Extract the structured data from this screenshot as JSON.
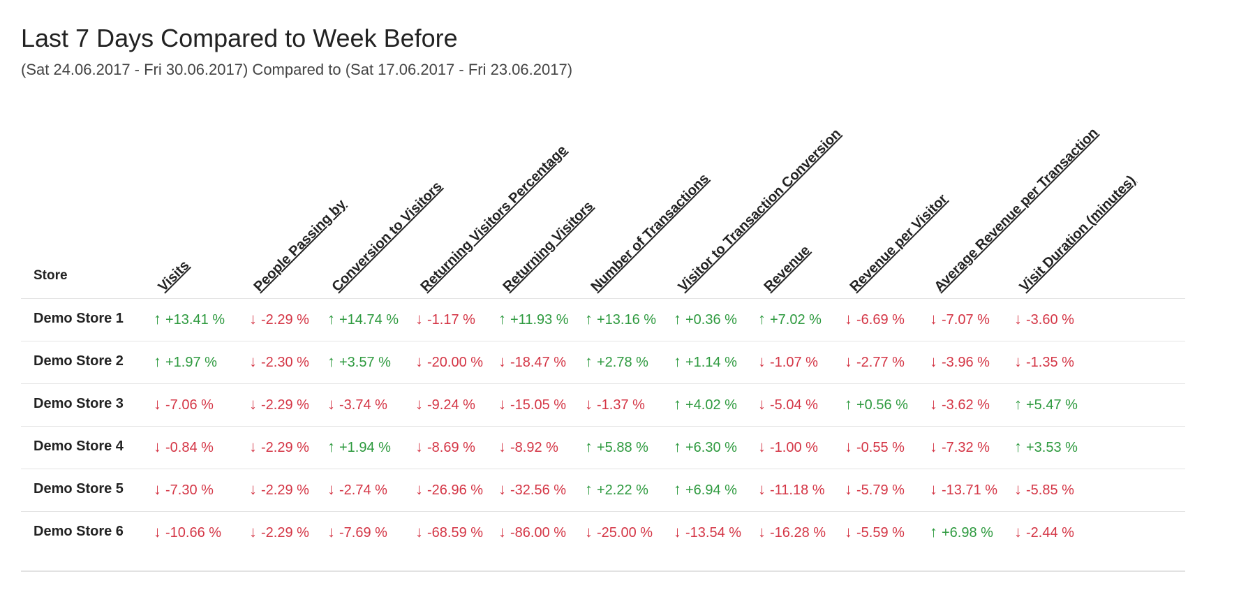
{
  "title": "Last 7 Days Compared to Week Before",
  "subtitle": "(Sat 24.06.2017 - Fri 30.06.2017) Compared to (Sat 17.06.2017 - Fri 23.06.2017)",
  "table": {
    "store_header": "Store",
    "columns": [
      "Visits",
      "People Passing by",
      "Conversion to Visitors",
      "Returning Visitors Percentage",
      "Returning Visitors",
      "Number of Transactions",
      "Visitor to Transaction Conversion",
      "Revenue",
      "Revenue per Visitor",
      "Average Revenue per Transaction",
      "Visit Duration (minutes)"
    ],
    "colors": {
      "up": "#2e9a3f",
      "down": "#d43545"
    },
    "arrows": {
      "up": "↑",
      "down": "↓"
    },
    "rows": [
      {
        "store": "Demo Store 1",
        "values": [
          {
            "dir": "up",
            "text": "+13.41 %"
          },
          {
            "dir": "down",
            "text": "-2.29 %"
          },
          {
            "dir": "up",
            "text": "+14.74 %"
          },
          {
            "dir": "down",
            "text": "-1.17 %"
          },
          {
            "dir": "up",
            "text": "+11.93 %"
          },
          {
            "dir": "up",
            "text": "+13.16 %"
          },
          {
            "dir": "up",
            "text": "+0.36 %"
          },
          {
            "dir": "up",
            "text": "+7.02 %"
          },
          {
            "dir": "down",
            "text": "-6.69 %"
          },
          {
            "dir": "down",
            "text": "-7.07 %"
          },
          {
            "dir": "down",
            "text": "-3.60 %"
          }
        ]
      },
      {
        "store": "Demo Store 2",
        "values": [
          {
            "dir": "up",
            "text": "+1.97 %"
          },
          {
            "dir": "down",
            "text": "-2.30 %"
          },
          {
            "dir": "up",
            "text": "+3.57 %"
          },
          {
            "dir": "down",
            "text": "-20.00 %"
          },
          {
            "dir": "down",
            "text": "-18.47 %"
          },
          {
            "dir": "up",
            "text": "+2.78 %"
          },
          {
            "dir": "up",
            "text": "+1.14 %"
          },
          {
            "dir": "down",
            "text": "-1.07 %"
          },
          {
            "dir": "down",
            "text": "-2.77 %"
          },
          {
            "dir": "down",
            "text": "-3.96 %"
          },
          {
            "dir": "down",
            "text": "-1.35 %"
          }
        ]
      },
      {
        "store": "Demo Store 3",
        "values": [
          {
            "dir": "down",
            "text": "-7.06 %"
          },
          {
            "dir": "down",
            "text": "-2.29 %"
          },
          {
            "dir": "down",
            "text": "-3.74 %"
          },
          {
            "dir": "down",
            "text": "-9.24 %"
          },
          {
            "dir": "down",
            "text": "-15.05 %"
          },
          {
            "dir": "down",
            "text": "-1.37 %"
          },
          {
            "dir": "up",
            "text": "+4.02 %"
          },
          {
            "dir": "down",
            "text": "-5.04 %"
          },
          {
            "dir": "up",
            "text": "+0.56 %"
          },
          {
            "dir": "down",
            "text": "-3.62 %"
          },
          {
            "dir": "up",
            "text": "+5.47 %"
          }
        ]
      },
      {
        "store": "Demo Store 4",
        "values": [
          {
            "dir": "down",
            "text": "-0.84 %"
          },
          {
            "dir": "down",
            "text": "-2.29 %"
          },
          {
            "dir": "up",
            "text": "+1.94 %"
          },
          {
            "dir": "down",
            "text": "-8.69 %"
          },
          {
            "dir": "down",
            "text": "-8.92 %"
          },
          {
            "dir": "up",
            "text": "+5.88 %"
          },
          {
            "dir": "up",
            "text": "+6.30 %"
          },
          {
            "dir": "down",
            "text": "-1.00 %"
          },
          {
            "dir": "down",
            "text": "-0.55 %"
          },
          {
            "dir": "down",
            "text": "-7.32 %"
          },
          {
            "dir": "up",
            "text": "+3.53 %"
          }
        ]
      },
      {
        "store": "Demo Store 5",
        "values": [
          {
            "dir": "down",
            "text": "-7.30 %"
          },
          {
            "dir": "down",
            "text": "-2.29 %"
          },
          {
            "dir": "down",
            "text": "-2.74 %"
          },
          {
            "dir": "down",
            "text": "-26.96 %"
          },
          {
            "dir": "down",
            "text": "-32.56 %"
          },
          {
            "dir": "up",
            "text": "+2.22 %"
          },
          {
            "dir": "up",
            "text": "+6.94 %"
          },
          {
            "dir": "down",
            "text": "-11.18 %"
          },
          {
            "dir": "down",
            "text": "-5.79 %"
          },
          {
            "dir": "down",
            "text": "-13.71 %"
          },
          {
            "dir": "down",
            "text": "-5.85 %"
          }
        ]
      },
      {
        "store": "Demo Store 6",
        "values": [
          {
            "dir": "down",
            "text": "-10.66 %"
          },
          {
            "dir": "down",
            "text": "-2.29 %"
          },
          {
            "dir": "down",
            "text": "-7.69 %"
          },
          {
            "dir": "down",
            "text": "-68.59 %"
          },
          {
            "dir": "down",
            "text": "-86.00 %"
          },
          {
            "dir": "down",
            "text": "-25.00 %"
          },
          {
            "dir": "down",
            "text": "-13.54 %"
          },
          {
            "dir": "down",
            "text": "-16.28 %"
          },
          {
            "dir": "down",
            "text": "-5.59 %"
          },
          {
            "dir": "up",
            "text": "+6.98 %"
          },
          {
            "dir": "down",
            "text": "-2.44 %"
          }
        ]
      }
    ]
  }
}
